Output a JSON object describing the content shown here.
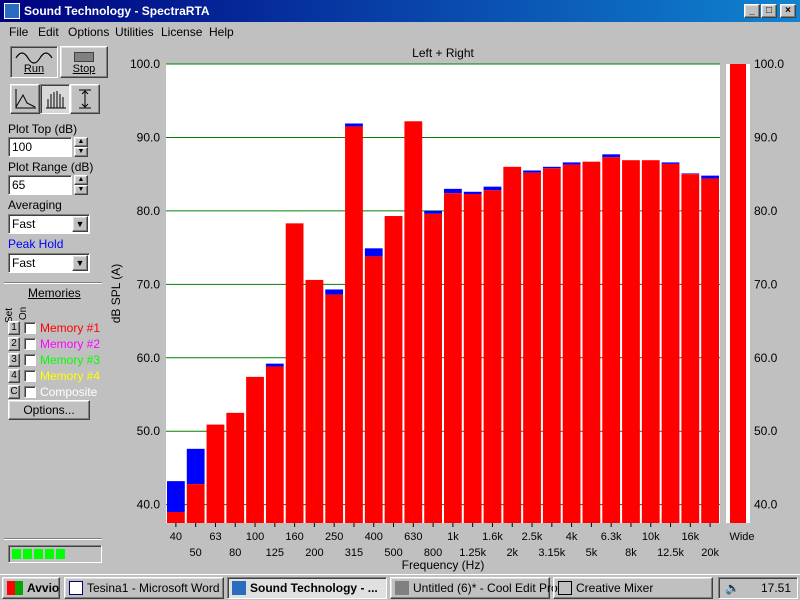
{
  "window": {
    "title": "Sound Technology - SpectraRTA"
  },
  "menu": [
    "File",
    "Edit",
    "Options",
    "Utilities",
    "License",
    "Help"
  ],
  "toolbar": {
    "run_label": "Run",
    "stop_label": "Stop"
  },
  "controls": {
    "plot_top_label": "Plot Top (dB)",
    "plot_top_value": "100",
    "plot_range_label": "Plot Range (dB)",
    "plot_range_value": "65",
    "averaging_label": "Averaging",
    "averaging_value": "Fast",
    "peak_hold_label": "Peak Hold",
    "peak_hold_value": "Fast"
  },
  "memories": {
    "title": "Memories",
    "set_header": "Set",
    "on_header": "On",
    "items": [
      {
        "num": "1",
        "name": "Memory #1",
        "color": "#ff0000"
      },
      {
        "num": "2",
        "name": "Memory #2",
        "color": "#ff00ff"
      },
      {
        "num": "3",
        "name": "Memory #3",
        "color": "#00ff00"
      },
      {
        "num": "4",
        "name": "Memory #4",
        "color": "#ffff00"
      },
      {
        "num": "C",
        "name": "Composite",
        "color": "#ffffff"
      }
    ],
    "options_label": "Options..."
  },
  "colors": {
    "bar": "#ff0000",
    "peak": "#0000ff",
    "grid": "#008000",
    "plot_bg": "#ffffff",
    "meter": "#00ff00"
  },
  "chart_data": {
    "type": "bar",
    "title": "Left + Right",
    "xlabel": "Frequency (Hz)",
    "ylabel": "dB SPL (A)",
    "ylim": [
      37.5,
      100
    ],
    "yticks": [
      "100.0",
      "90.0",
      "80.0",
      "70.0",
      "60.0",
      "50.0",
      "40.0"
    ],
    "categories": [
      "40",
      "50",
      "63",
      "80",
      "100",
      "125",
      "160",
      "200",
      "250",
      "315",
      "400",
      "500",
      "630",
      "800",
      "1k",
      "1.25k",
      "1.6k",
      "2k",
      "2.5k",
      "3.15k",
      "4k",
      "5k",
      "6.3k",
      "8k",
      "10k",
      "12.5k",
      "16k",
      "20k"
    ],
    "values": [
      39.0,
      42.8,
      50.9,
      52.5,
      57.4,
      58.8,
      78.3,
      70.6,
      68.6,
      91.5,
      73.8,
      79.3,
      92.2,
      79.6,
      82.4,
      82.3,
      82.8,
      86.0,
      85.2,
      85.8,
      86.3,
      86.7,
      87.3,
      86.9,
      86.9,
      86.4,
      85.0,
      84.4
    ],
    "peak": [
      43.2,
      47.6,
      50.9,
      52.5,
      57.4,
      59.2,
      78.3,
      70.6,
      69.3,
      91.9,
      74.9,
      79.3,
      92.2,
      80.0,
      83.0,
      82.6,
      83.3,
      86.0,
      85.5,
      86.0,
      86.6,
      86.7,
      87.7,
      86.9,
      86.9,
      86.6,
      85.1,
      84.8
    ],
    "wide": {
      "label": "Wide",
      "value": 100.0
    },
    "grid": true
  },
  "taskbar": {
    "start_label": "Avvio",
    "tasks": [
      "Tesina1 - Microsoft Word",
      "Sound Technology - ...",
      "Untitled (6)* - Cool Edit Pro",
      "Creative Mixer"
    ],
    "clock": "17.51"
  }
}
